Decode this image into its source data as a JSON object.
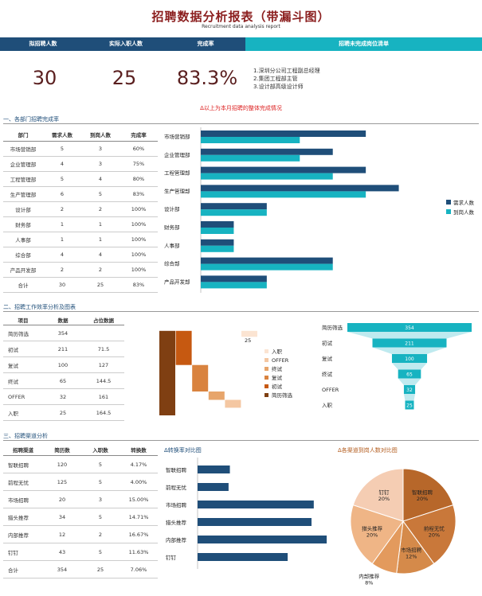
{
  "header": {
    "title": "招聘数据分析报表（带漏斗图）",
    "subtitle": "Recruitment data analysis report"
  },
  "kpi": {
    "labels": [
      "拟招聘人数",
      "实际入职人数",
      "完成率",
      "招聘未完成岗位清单"
    ],
    "values": [
      "30",
      "25",
      "83.3%"
    ],
    "pending_list": [
      "1.深圳分公司工程副总经理",
      "2.集团工程部主管",
      "3.设计部高级设计师"
    ],
    "note": "Δ以上为本月招聘的整体完成情况",
    "colors": {
      "navy": "#1f4e79",
      "teal": "#17b3c1",
      "value": "#5a1f1f"
    }
  },
  "section1": {
    "title": "一、各部门招聘完成率",
    "headers": [
      "部门",
      "需求人数",
      "到岗人数",
      "完成率"
    ],
    "rows": [
      [
        "市场营销部",
        "5",
        "3",
        "60%"
      ],
      [
        "企业管理部",
        "4",
        "3",
        "75%"
      ],
      [
        "工程管理部",
        "5",
        "4",
        "80%"
      ],
      [
        "生产管理部",
        "6",
        "5",
        "83%"
      ],
      [
        "设计部",
        "2",
        "2",
        "100%"
      ],
      [
        "财务部",
        "1",
        "1",
        "100%"
      ],
      [
        "人事部",
        "1",
        "1",
        "100%"
      ],
      [
        "综合部",
        "4",
        "4",
        "100%"
      ],
      [
        "产品开发部",
        "2",
        "2",
        "100%"
      ],
      [
        "合计",
        "30",
        "25",
        "83%"
      ]
    ]
  },
  "section2": {
    "title": "二、招聘工作效率分析及图表",
    "headers": [
      "项目",
      "数据",
      "占位数据"
    ],
    "rows": [
      [
        "简历筛选",
        "354",
        ""
      ],
      [
        "初试",
        "211",
        "71.5"
      ],
      [
        "复试",
        "100",
        "127"
      ],
      [
        "终试",
        "65",
        "144.5"
      ],
      [
        "OFFER",
        "32",
        "161"
      ],
      [
        "入职",
        "25",
        "164.5"
      ]
    ]
  },
  "section3": {
    "title": "三、招聘渠道分析",
    "headers": [
      "招聘渠道",
      "简历数",
      "入职数",
      "转换数"
    ],
    "rows": [
      [
        "智联招聘",
        "120",
        "5",
        "4.17%"
      ],
      [
        "前程无忧",
        "125",
        "5",
        "4.00%"
      ],
      [
        "市场招聘",
        "20",
        "3",
        "15.00%"
      ],
      [
        "猎头推荐",
        "34",
        "5",
        "14.71%"
      ],
      [
        "内部推荐",
        "12",
        "2",
        "16.67%"
      ],
      [
        "钉钉",
        "43",
        "5",
        "11.63%"
      ],
      [
        "合计",
        "354",
        "25",
        "7.06%"
      ]
    ],
    "conv_title": "Δ转换率对比图",
    "pie_title": "Δ各渠道到岗人数对比图"
  },
  "chart_data": [
    {
      "type": "bar",
      "orientation": "horizontal",
      "categories": [
        "市场营销部",
        "企业管理部",
        "工程管理部",
        "生产管理部",
        "设计部",
        "财务部",
        "人事部",
        "综合部",
        "产品开发部"
      ],
      "series": [
        {
          "name": "需求人数",
          "values": [
            5,
            4,
            5,
            6,
            2,
            1,
            1,
            4,
            2
          ],
          "color": "#1f4e79"
        },
        {
          "name": "到岗人数",
          "values": [
            3,
            3,
            4,
            5,
            2,
            1,
            1,
            4,
            2
          ],
          "color": "#17b3c1"
        }
      ],
      "xlim": [
        0,
        7
      ],
      "legend": "right"
    },
    {
      "type": "waterfall",
      "categories": [
        "简历筛选",
        "初试",
        "复试",
        "终试",
        "OFFER",
        "入职"
      ],
      "values": [
        354,
        211,
        100,
        65,
        32,
        25
      ],
      "label": "25",
      "legend_items": [
        "入职",
        "OFFER",
        "终试",
        "复试",
        "初试",
        "简历筛选"
      ],
      "colors": [
        "#7f3f12",
        "#c65911",
        "#d9833f",
        "#e7a56b",
        "#f4c7a2",
        "#fbe4d2"
      ]
    },
    {
      "type": "funnel",
      "categories": [
        "简历筛选",
        "初试",
        "复试",
        "终试",
        "OFFER",
        "入职"
      ],
      "values": [
        354,
        211,
        100,
        65,
        32,
        25
      ],
      "color": "#17b3c1"
    },
    {
      "type": "bar",
      "orientation": "horizontal",
      "categories": [
        "智联招聘",
        "前程无忧",
        "市场招聘",
        "猎头推荐",
        "内部推荐",
        "钉钉"
      ],
      "values": [
        4.17,
        4.0,
        15.0,
        14.71,
        16.67,
        11.63
      ],
      "color": "#1f4e79"
    },
    {
      "type": "pie",
      "labels": [
        "智联招聘",
        "前程无忧",
        "市场招聘",
        "内部推荐",
        "猎头推荐",
        "钉钉"
      ],
      "values": [
        5,
        5,
        3,
        2,
        5,
        5
      ],
      "percent_labels": [
        "20%",
        "20%",
        "12%",
        "8%",
        "20%",
        "20%"
      ],
      "colors": [
        "#b7672a",
        "#c9783a",
        "#d58a4a",
        "#e39a5d",
        "#efb586",
        "#f5cdb3"
      ]
    }
  ]
}
